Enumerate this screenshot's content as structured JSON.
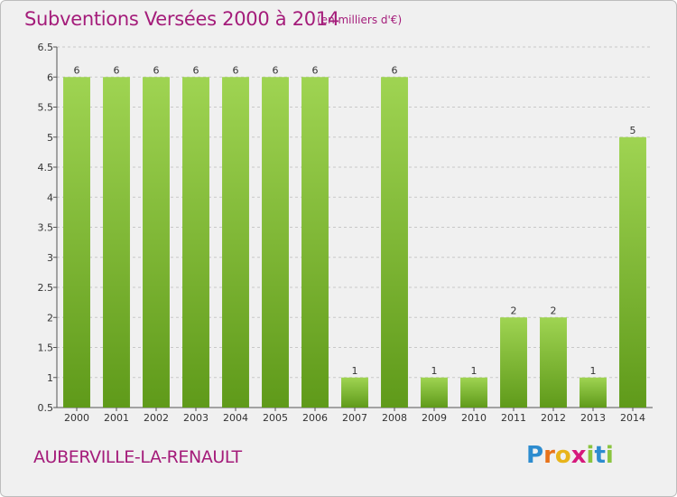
{
  "header": {
    "title": "Subventions Versées 2000 à 2014",
    "subtitle": "(en milliers d'€)"
  },
  "footer": {
    "commune": "AUBERVILLE-LA-RENAULT",
    "logo_letters": [
      "P",
      "r",
      "o",
      "x",
      "i",
      "t",
      "i"
    ],
    "logo_colors": [
      "#2d8ccf",
      "#e8731a",
      "#e8b41a",
      "#d6197c",
      "#8ac43f",
      "#2d8ccf",
      "#8ac43f"
    ]
  },
  "colors": {
    "bar_top": "#9fd452",
    "bar_bottom": "#5f9a1a",
    "title": "#a41c7a",
    "grid": "#c8c8c8"
  },
  "chart_data": {
    "type": "bar",
    "categories": [
      "2000",
      "2001",
      "2002",
      "2003",
      "2004",
      "2005",
      "2006",
      "2007",
      "2008",
      "2009",
      "2010",
      "2011",
      "2012",
      "2013",
      "2014"
    ],
    "values": [
      6,
      6,
      6,
      6,
      6,
      6,
      6,
      1,
      6,
      1,
      1,
      2,
      2,
      1,
      5
    ],
    "value_labels": [
      "6",
      "6",
      "6",
      "6",
      "6",
      "6",
      "6",
      "1",
      "6",
      "1",
      "1",
      "2",
      "2",
      "1",
      "5"
    ],
    "y_ticks": [
      "0.5",
      "1",
      "1.5",
      "2",
      "2.5",
      "3",
      "3.5",
      "4",
      "4.5",
      "5",
      "5.5",
      "6",
      "6.5"
    ],
    "ylim": [
      0.5,
      6.5
    ],
    "grid": true,
    "legend": "none"
  }
}
